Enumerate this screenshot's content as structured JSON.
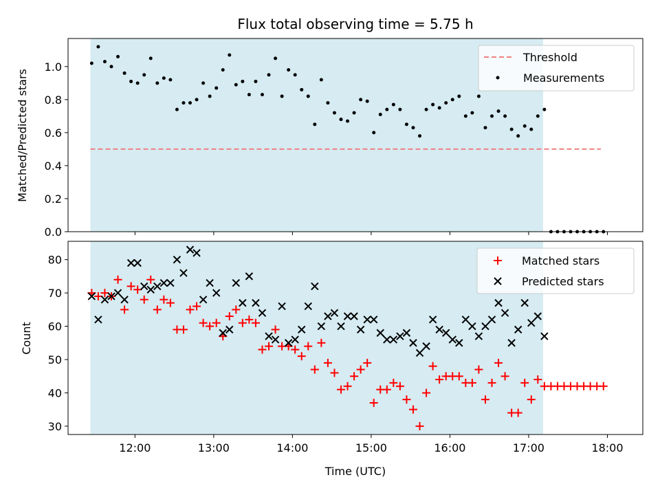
{
  "chart_data": [
    {
      "type": "scatter",
      "title": "Flux total observing time = 5.75 h",
      "xlabel": "",
      "ylabel": "Matched/Predicted stars",
      "ylim": [
        0.0,
        1.17
      ],
      "yticks": [
        "0.0",
        "0.2",
        "0.4",
        "0.6",
        "0.8",
        "1.0"
      ],
      "ytick_values": [
        0.0,
        0.2,
        0.4,
        0.6,
        0.8,
        1.0
      ],
      "grid": false,
      "legend_position": "top-right",
      "shaded_span": {
        "from": "11:26",
        "to": "17:11",
        "color": "#add8e6"
      },
      "threshold": {
        "name": "Threshold",
        "value": 0.5,
        "from": "11:26",
        "to": "17:55",
        "color": "#f08080"
      },
      "series": [
        {
          "name": "Measurements",
          "color": "#000000",
          "x": [
            "11:27",
            "11:32",
            "11:37",
            "11:42",
            "11:47",
            "11:52",
            "11:57",
            "12:02",
            "12:07",
            "12:12",
            "12:17",
            "12:22",
            "12:27",
            "12:32",
            "12:37",
            "12:42",
            "12:47",
            "12:52",
            "12:57",
            "13:02",
            "13:07",
            "13:12",
            "13:17",
            "13:22",
            "13:27",
            "13:32",
            "13:37",
            "13:42",
            "13:47",
            "13:52",
            "13:57",
            "14:02",
            "14:07",
            "14:12",
            "14:17",
            "14:22",
            "14:27",
            "14:32",
            "14:37",
            "14:42",
            "14:47",
            "14:52",
            "14:57",
            "15:02",
            "15:07",
            "15:12",
            "15:17",
            "15:22",
            "15:27",
            "15:32",
            "15:37",
            "15:42",
            "15:47",
            "15:52",
            "15:57",
            "16:02",
            "16:07",
            "16:12",
            "16:17",
            "16:22",
            "16:27",
            "16:32",
            "16:37",
            "16:42",
            "16:47",
            "16:52",
            "16:57",
            "17:02",
            "17:07",
            "17:12",
            "17:17",
            "17:22",
            "17:27",
            "17:32",
            "17:37",
            "17:42",
            "17:47",
            "17:52",
            "17:57"
          ],
          "y": [
            1.02,
            1.12,
            1.03,
            1.0,
            1.06,
            0.96,
            0.91,
            0.9,
            0.95,
            1.05,
            0.9,
            0.93,
            0.92,
            0.74,
            0.78,
            0.78,
            0.8,
            0.9,
            0.82,
            0.87,
            0.98,
            1.07,
            0.89,
            0.91,
            0.83,
            0.91,
            0.83,
            0.95,
            1.05,
            0.82,
            0.98,
            0.95,
            0.86,
            0.82,
            0.65,
            0.92,
            0.78,
            0.72,
            0.68,
            0.67,
            0.72,
            0.8,
            0.79,
            0.6,
            0.71,
            0.74,
            0.77,
            0.74,
            0.65,
            0.63,
            0.58,
            0.74,
            0.77,
            0.75,
            0.78,
            0.8,
            0.82,
            0.7,
            0.72,
            0.82,
            0.63,
            0.7,
            0.73,
            0.7,
            0.62,
            0.58,
            0.64,
            0.62,
            0.7,
            0.74,
            0.0,
            0.0,
            0.0,
            0.0,
            0.0,
            0.0,
            0.0,
            0.0,
            0.0
          ]
        }
      ]
    },
    {
      "type": "scatter",
      "title": "",
      "xlabel": "Time (UTC)",
      "ylabel": "Count",
      "ylim": [
        27.5,
        85.5
      ],
      "yticks": [
        "30",
        "40",
        "50",
        "60",
        "70",
        "80"
      ],
      "ytick_values": [
        30,
        40,
        50,
        60,
        70,
        80
      ],
      "xticks": [
        "12:00",
        "13:00",
        "14:00",
        "15:00",
        "16:00",
        "17:00",
        "18:00"
      ],
      "xlim": [
        "11:09",
        "18:27"
      ],
      "grid": false,
      "legend_position": "top-right",
      "shaded_span": {
        "from": "11:26",
        "to": "17:11",
        "color": "#add8e6"
      },
      "series": [
        {
          "name": "Matched stars",
          "color": "#ff0000",
          "marker": "+",
          "x": [
            "11:27",
            "11:32",
            "11:37",
            "11:42",
            "11:47",
            "11:52",
            "11:57",
            "12:02",
            "12:07",
            "12:12",
            "12:17",
            "12:22",
            "12:27",
            "12:32",
            "12:37",
            "12:42",
            "12:47",
            "12:52",
            "12:57",
            "13:02",
            "13:07",
            "13:12",
            "13:17",
            "13:22",
            "13:27",
            "13:32",
            "13:37",
            "13:42",
            "13:47",
            "13:52",
            "13:57",
            "14:02",
            "14:07",
            "14:12",
            "14:17",
            "14:22",
            "14:27",
            "14:32",
            "14:37",
            "14:42",
            "14:47",
            "14:52",
            "14:57",
            "15:02",
            "15:07",
            "15:12",
            "15:17",
            "15:22",
            "15:27",
            "15:32",
            "15:37",
            "15:42",
            "15:47",
            "15:52",
            "15:57",
            "16:02",
            "16:07",
            "16:12",
            "16:17",
            "16:22",
            "16:27",
            "16:32",
            "16:37",
            "16:42",
            "16:47",
            "16:52",
            "16:57",
            "17:02",
            "17:07",
            "17:12",
            "17:17",
            "17:22",
            "17:27",
            "17:32",
            "17:37",
            "17:42",
            "17:47",
            "17:52",
            "17:57"
          ],
          "y": [
            70,
            69,
            70,
            69,
            74,
            65,
            72,
            71,
            68,
            74,
            65,
            68,
            67,
            59,
            59,
            65,
            66,
            61,
            60,
            61,
            57,
            63,
            65,
            61,
            62,
            61,
            53,
            54,
            59,
            54,
            54,
            53,
            51,
            54,
            47,
            55,
            49,
            46,
            41,
            42,
            45,
            47,
            49,
            37,
            41,
            41,
            43,
            42,
            38,
            35,
            30,
            40,
            48,
            44,
            45,
            45,
            45,
            43,
            43,
            47,
            38,
            43,
            49,
            45,
            34,
            34,
            43,
            38,
            44,
            42,
            42,
            42,
            42,
            42,
            42,
            42,
            42,
            42,
            42
          ]
        },
        {
          "name": "Predicted stars",
          "color": "#000000",
          "marker": "x",
          "x": [
            "11:27",
            "11:32",
            "11:37",
            "11:42",
            "11:47",
            "11:52",
            "11:57",
            "12:02",
            "12:07",
            "12:12",
            "12:17",
            "12:22",
            "12:27",
            "12:32",
            "12:37",
            "12:42",
            "12:47",
            "12:52",
            "12:57",
            "13:02",
            "13:07",
            "13:12",
            "13:17",
            "13:22",
            "13:27",
            "13:32",
            "13:37",
            "13:42",
            "13:47",
            "13:52",
            "13:57",
            "14:02",
            "14:07",
            "14:12",
            "14:17",
            "14:22",
            "14:27",
            "14:32",
            "14:37",
            "14:42",
            "14:47",
            "14:52",
            "14:57",
            "15:02",
            "15:07",
            "15:12",
            "15:17",
            "15:22",
            "15:27",
            "15:32",
            "15:37",
            "15:42",
            "15:47",
            "15:52",
            "15:57",
            "16:02",
            "16:07",
            "16:12",
            "16:17",
            "16:22",
            "16:27",
            "16:32",
            "16:37",
            "16:42",
            "16:47",
            "16:52",
            "16:57",
            "17:02",
            "17:07",
            "17:12"
          ],
          "y": [
            69,
            62,
            68,
            69,
            70,
            68,
            79,
            79,
            72,
            71,
            72,
            73,
            73,
            80,
            76,
            83,
            82,
            68,
            73,
            70,
            58,
            59,
            73,
            67,
            75,
            67,
            64,
            57,
            56,
            66,
            55,
            56,
            59,
            66,
            72,
            60,
            63,
            64,
            60,
            63,
            63,
            59,
            62,
            62,
            58,
            56,
            56,
            57,
            58,
            55,
            52,
            54,
            62,
            59,
            58,
            56,
            55,
            62,
            60,
            57,
            60,
            62,
            67,
            64,
            55,
            59,
            67,
            61,
            63,
            57
          ]
        }
      ]
    }
  ]
}
